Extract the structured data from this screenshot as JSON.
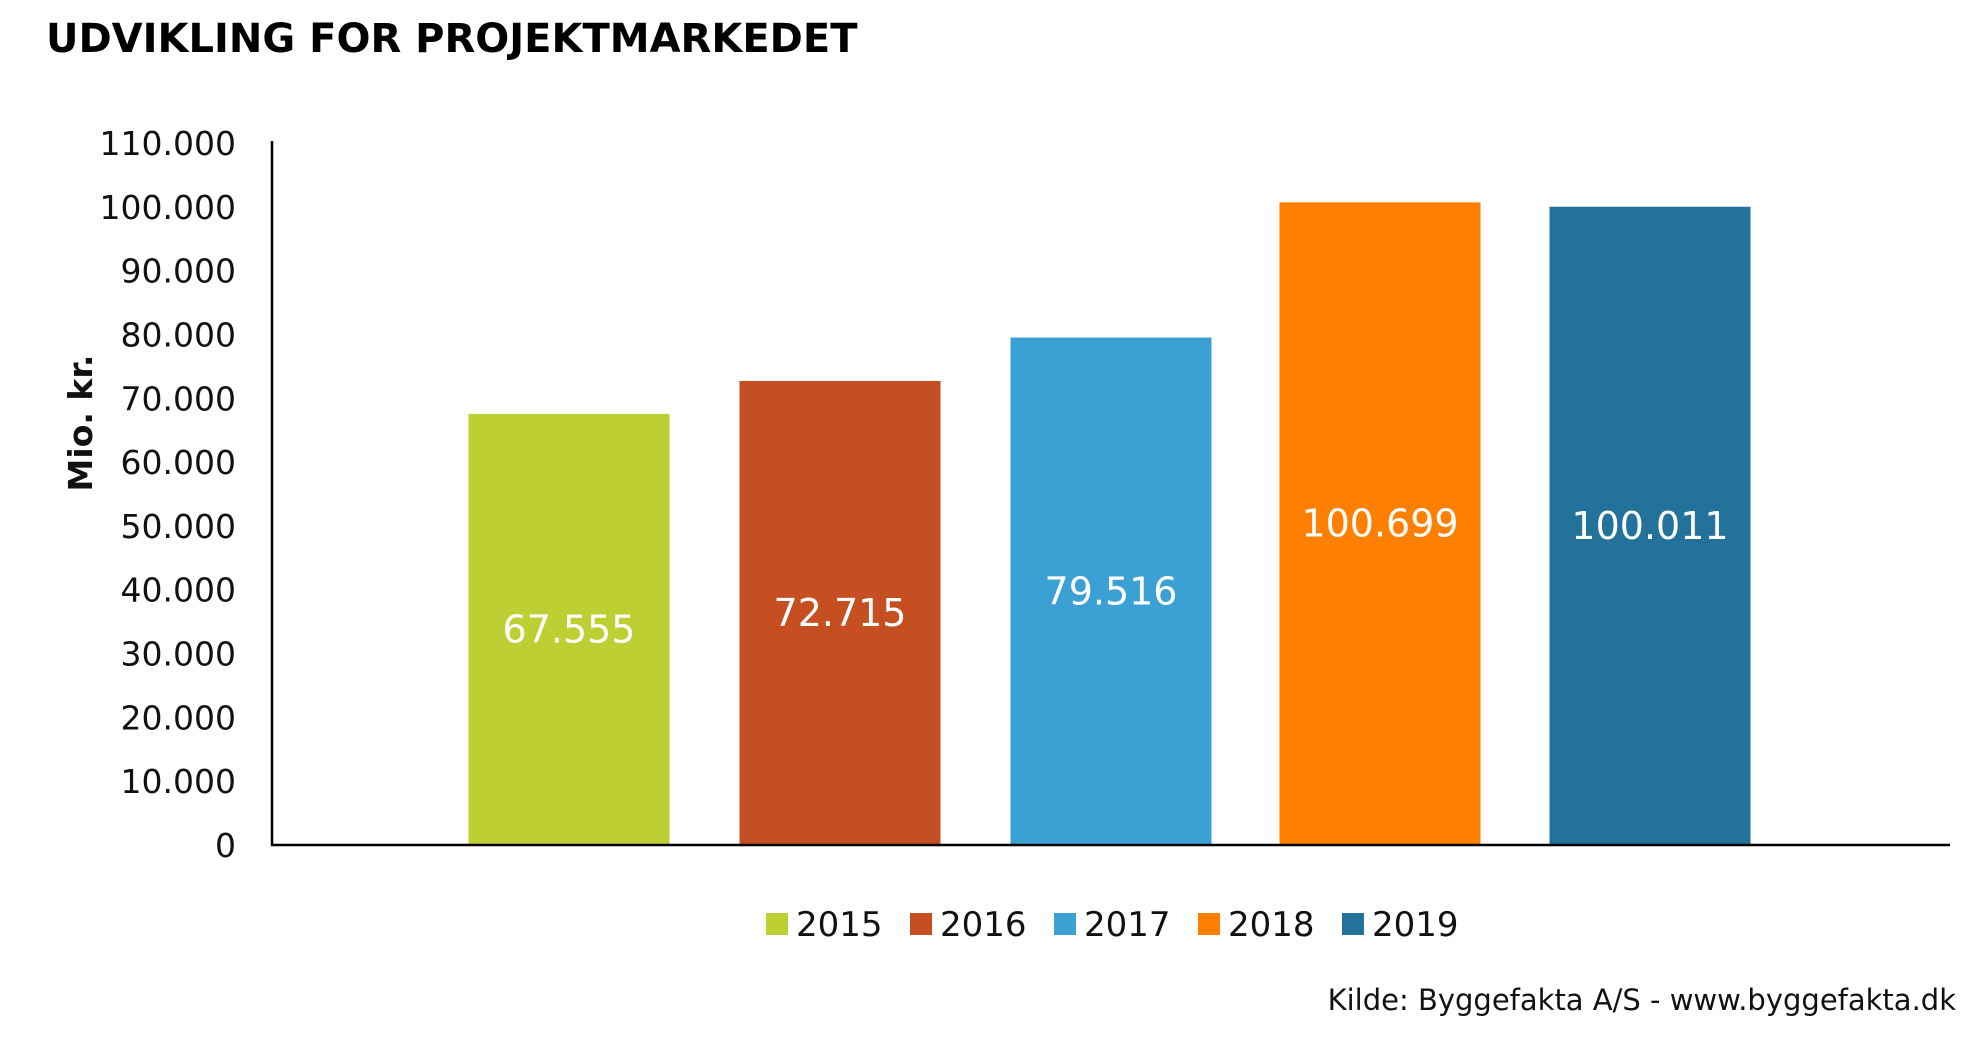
{
  "chart_data": {
    "type": "bar",
    "title": "UDVIKLING FOR PROJEKTMARKEDET",
    "ylabel": "Mio. kr.",
    "xlabel": "",
    "ylim": [
      0,
      110000
    ],
    "yticks": [
      0,
      10000,
      20000,
      30000,
      40000,
      50000,
      60000,
      70000,
      80000,
      90000,
      100000,
      110000
    ],
    "ytick_labels": [
      "0",
      "10.000",
      "20.000",
      "30.000",
      "40.000",
      "50.000",
      "60.000",
      "70.000",
      "80.000",
      "90.000",
      "100.000",
      "110.000"
    ],
    "categories": [
      "2015",
      "2016",
      "2017",
      "2018",
      "2019"
    ],
    "values": [
      67555,
      72715,
      79516,
      100699,
      100011
    ],
    "value_labels": [
      "67.555",
      "72.715",
      "79.516",
      "100.699",
      "100.011"
    ],
    "colors": [
      "#BDCF33",
      "#C64F22",
      "#3BA0D4",
      "#FF7F00",
      "#22729C"
    ],
    "legend": {
      "placement": "bottom",
      "entries": [
        "2015",
        "2016",
        "2017",
        "2018",
        "2019"
      ]
    },
    "grid": false,
    "source": "Kilde: Byggefakta A/S - www.byggefakta.dk"
  }
}
